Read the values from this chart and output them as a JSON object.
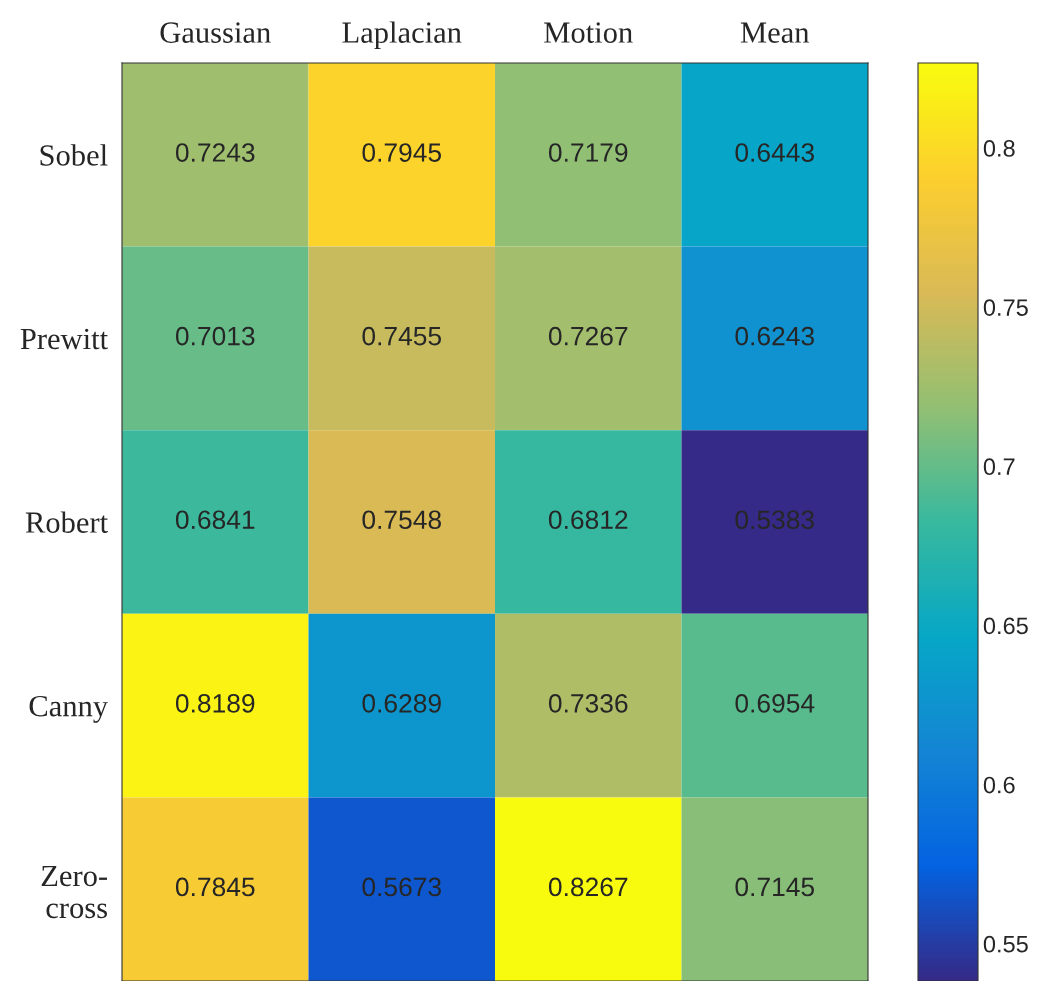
{
  "chart_data": {
    "type": "heatmap",
    "categories": [
      "Gaussian",
      "Laplacian",
      "Motion",
      "Mean"
    ],
    "y_categories": [
      "Sobel",
      "Prewitt",
      "Robert",
      "Canny",
      "Zero-\ncross"
    ],
    "cells": [
      [
        0.7243,
        0.7945,
        0.7179,
        0.6443
      ],
      [
        0.7013,
        0.7455,
        0.7267,
        0.6243
      ],
      [
        0.6841,
        0.7548,
        0.6812,
        0.5383
      ],
      [
        0.8189,
        0.6289,
        0.7336,
        0.6954
      ],
      [
        0.7845,
        0.5673,
        0.8267,
        0.7145
      ]
    ],
    "data_labels": true,
    "clim": [
      0.5383,
      0.8267
    ],
    "cticks": [
      0.55,
      0.6,
      0.65,
      0.7,
      0.75,
      0.8
    ]
  }
}
